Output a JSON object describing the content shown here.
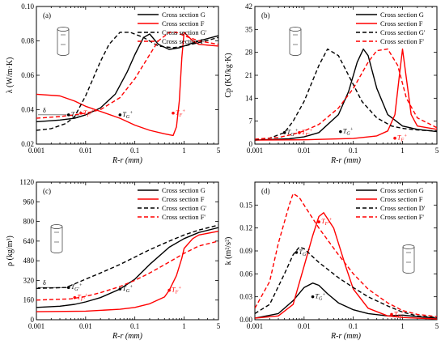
{
  "chart_data": [
    {
      "type": "line",
      "panel_label": "(a)",
      "xlabel": "R-r (mm)",
      "ylabel": "λ (W/m·K)",
      "xscale": "log",
      "xlim": [
        0.001,
        5
      ],
      "ylim": [
        0.02,
        0.1
      ],
      "xticks": [
        0.001,
        0.01,
        0.1,
        1,
        5
      ],
      "xtick_labels": [
        "0.001",
        "0.01",
        "0.1",
        "1",
        "5"
      ],
      "yticks": [
        0.02,
        0.04,
        0.06,
        0.08,
        0.1
      ],
      "ytick_labels": [
        "0.02",
        "0.04",
        "0.06",
        "0.08",
        "0.10"
      ],
      "legend_position": "top-right",
      "series": [
        {
          "name": "Cross section G",
          "color": "#000000",
          "dash": "solid",
          "x": [
            0.001,
            0.003,
            0.006,
            0.01,
            0.02,
            0.04,
            0.07,
            0.1,
            0.15,
            0.2,
            0.3,
            0.5,
            0.8,
            1,
            2,
            5
          ],
          "y": [
            0.033,
            0.034,
            0.035,
            0.037,
            0.041,
            0.049,
            0.062,
            0.072,
            0.082,
            0.084,
            0.078,
            0.075,
            0.076,
            0.077,
            0.08,
            0.083
          ]
        },
        {
          "name": "Cross section F",
          "color": "#ff0000",
          "dash": "solid",
          "x": [
            0.001,
            0.003,
            0.006,
            0.01,
            0.02,
            0.05,
            0.1,
            0.2,
            0.4,
            0.6,
            0.7,
            0.8,
            0.9,
            1,
            1.5,
            2,
            5
          ],
          "y": [
            0.049,
            0.048,
            0.045,
            0.042,
            0.039,
            0.035,
            0.031,
            0.028,
            0.026,
            0.025,
            0.03,
            0.045,
            0.07,
            0.085,
            0.08,
            0.078,
            0.077
          ]
        },
        {
          "name": "Cross section G'",
          "color": "#000000",
          "dash": "dash",
          "x": [
            0.001,
            0.002,
            0.004,
            0.006,
            0.01,
            0.02,
            0.03,
            0.05,
            0.08,
            0.15,
            0.3,
            0.6,
            1,
            2,
            5
          ],
          "y": [
            0.028,
            0.029,
            0.032,
            0.036,
            0.048,
            0.068,
            0.078,
            0.085,
            0.085,
            0.082,
            0.077,
            0.076,
            0.077,
            0.079,
            0.082
          ]
        },
        {
          "name": "Cross section F'",
          "color": "#ff0000",
          "dash": "dash",
          "x": [
            0.001,
            0.003,
            0.006,
            0.01,
            0.02,
            0.05,
            0.1,
            0.2,
            0.3,
            0.5,
            0.7,
            1,
            2,
            5
          ],
          "y": [
            0.035,
            0.036,
            0.037,
            0.038,
            0.04,
            0.047,
            0.058,
            0.072,
            0.08,
            0.085,
            0.085,
            0.083,
            0.08,
            0.078
          ]
        }
      ],
      "markers": [
        {
          "label": "T",
          "sub": "G",
          "sup": "+",
          "color": "#000000",
          "x": 0.05,
          "y": 0.037
        },
        {
          "label": "T",
          "sub": "F",
          "sup": "+",
          "color": "#ff0000",
          "x": 0.6,
          "y": 0.038
        },
        {
          "label": "T",
          "sub": "G'",
          "sup": "+",
          "color": "#000000",
          "x": 0.0045,
          "y": 0.037
        },
        {
          "label": "T",
          "sub": "F'",
          "sup": "+",
          "color": "#ff0000",
          "x": 0.008,
          "y": 0.038
        }
      ],
      "delta_label": "δ"
    },
    {
      "type": "line",
      "panel_label": "(b)",
      "xlabel": "R-r (mm)",
      "ylabel": "Cp (KJ/kg·K)",
      "xscale": "log",
      "xlim": [
        0.001,
        5
      ],
      "ylim": [
        0,
        42
      ],
      "xticks": [
        0.001,
        0.01,
        0.1,
        1,
        5
      ],
      "xtick_labels": [
        "0.001",
        "0.01",
        "0.1",
        "1",
        "5"
      ],
      "yticks": [
        0,
        7,
        14,
        21,
        28,
        35,
        42
      ],
      "ytick_labels": [
        "0",
        "7",
        "14",
        "21",
        "28",
        "35",
        "42"
      ],
      "legend_position": "top-right",
      "series": [
        {
          "name": "Cross section G",
          "color": "#000000",
          "dash": "solid",
          "x": [
            0.001,
            0.005,
            0.01,
            0.02,
            0.05,
            0.08,
            0.12,
            0.16,
            0.2,
            0.3,
            0.5,
            1,
            2,
            5
          ],
          "y": [
            1.2,
            1.6,
            2.2,
            3.5,
            9,
            16,
            25,
            29,
            27,
            17,
            9,
            5.5,
            4.5,
            3.8
          ]
        },
        {
          "name": "Cross section F",
          "color": "#ff0000",
          "dash": "solid",
          "x": [
            0.001,
            0.01,
            0.1,
            0.3,
            0.5,
            0.7,
            0.85,
            1,
            1.2,
            1.5,
            2,
            5
          ],
          "y": [
            1.2,
            1.3,
            1.7,
            2.5,
            4,
            9,
            20,
            29,
            20,
            9,
            5.5,
            4.5
          ]
        },
        {
          "name": "Cross section G'",
          "color": "#000000",
          "dash": "dash",
          "x": [
            0.001,
            0.002,
            0.004,
            0.006,
            0.01,
            0.02,
            0.03,
            0.05,
            0.08,
            0.15,
            0.3,
            0.6,
            1,
            2,
            5
          ],
          "y": [
            1.3,
            1.8,
            3.5,
            7,
            13,
            24,
            29,
            27,
            21,
            13,
            8,
            5.5,
            4.8,
            4.3,
            4
          ]
        },
        {
          "name": "Cross section F'",
          "color": "#ff0000",
          "dash": "dash",
          "x": [
            0.001,
            0.003,
            0.006,
            0.01,
            0.02,
            0.05,
            0.1,
            0.2,
            0.3,
            0.5,
            0.8,
            1.2,
            2,
            5
          ],
          "y": [
            1.5,
            2,
            3,
            4,
            6,
            11,
            17,
            25,
            28.5,
            29,
            24,
            14,
            8,
            5
          ]
        }
      ],
      "markers": [
        {
          "label": "T",
          "sub": "G",
          "sup": "+",
          "color": "#000000",
          "x": 0.055,
          "y": 3.8
        },
        {
          "label": "T",
          "sub": "F",
          "sup": "+",
          "color": "#ff0000",
          "x": 0.7,
          "y": 1.8
        },
        {
          "label": "T",
          "sub": "G'",
          "sup": "+",
          "color": "#000000",
          "x": 0.004,
          "y": 3.5
        },
        {
          "label": "T",
          "sub": "F'",
          "sup": "+",
          "color": "#ff0000",
          "x": 0.008,
          "y": 3.5
        }
      ]
    },
    {
      "type": "line",
      "panel_label": "(c)",
      "xlabel": "R-r (mm)",
      "ylabel": "ρ (kg/m³)",
      "xscale": "log",
      "xlim": [
        0.001,
        5
      ],
      "ylim": [
        0,
        1120
      ],
      "xticks": [
        0.001,
        0.01,
        0.1,
        1,
        5
      ],
      "xtick_labels": [
        "0.001",
        "0.01",
        "0.1",
        "1",
        "5"
      ],
      "yticks": [
        0,
        160,
        320,
        480,
        640,
        800,
        960,
        1120
      ],
      "ytick_labels": [
        "0",
        "160",
        "320",
        "480",
        "640",
        "800",
        "960",
        "1120"
      ],
      "legend_position": "top-right",
      "series": [
        {
          "name": "Cross section G",
          "color": "#000000",
          "dash": "solid",
          "x": [
            0.001,
            0.003,
            0.006,
            0.01,
            0.02,
            0.05,
            0.1,
            0.2,
            0.5,
            1,
            2,
            5
          ],
          "y": [
            100,
            110,
            125,
            145,
            180,
            250,
            330,
            450,
            590,
            660,
            710,
            750
          ]
        },
        {
          "name": "Cross section F",
          "color": "#ff0000",
          "dash": "solid",
          "x": [
            0.001,
            0.01,
            0.05,
            0.1,
            0.2,
            0.4,
            0.5,
            0.7,
            0.9,
            1,
            1.5,
            2,
            5
          ],
          "y": [
            65,
            70,
            85,
            100,
            130,
            185,
            240,
            360,
            500,
            580,
            660,
            690,
            720
          ]
        },
        {
          "name": "Cross section G'",
          "color": "#000000",
          "dash": "dash",
          "x": [
            0.001,
            0.002,
            0.004,
            0.01,
            0.02,
            0.05,
            0.1,
            0.2,
            0.5,
            1,
            2,
            5
          ],
          "y": [
            255,
            258,
            262,
            330,
            380,
            450,
            510,
            570,
            640,
            690,
            730,
            770
          ]
        },
        {
          "name": "Cross section F'",
          "color": "#ff0000",
          "dash": "dash",
          "x": [
            0.001,
            0.005,
            0.01,
            0.02,
            0.05,
            0.1,
            0.2,
            0.5,
            1,
            2,
            5
          ],
          "y": [
            160,
            170,
            190,
            220,
            270,
            320,
            380,
            470,
            540,
            600,
            640
          ]
        }
      ],
      "markers": [
        {
          "label": "T",
          "sub": "G",
          "sup": "+",
          "color": "#000000",
          "x": 0.05,
          "y": 250
        },
        {
          "label": "T",
          "sub": "F",
          "sup": "+",
          "color": "#ff0000",
          "x": 0.5,
          "y": 240
        },
        {
          "label": "T",
          "sub": "G'",
          "sup": "+",
          "color": "#000000",
          "x": 0.0045,
          "y": 262
        },
        {
          "label": "T",
          "sub": "F'",
          "sup": "+",
          "color": "#ff0000",
          "x": 0.006,
          "y": 180
        }
      ],
      "delta_label": "δ"
    },
    {
      "type": "line",
      "panel_label": "(d)",
      "xlabel": "R-r (mm)",
      "ylabel": "k (m²/s²)",
      "xscale": "log",
      "xlim": [
        0.001,
        5
      ],
      "ylim": [
        0,
        0.18
      ],
      "xticks": [
        0.001,
        0.01,
        0.1,
        1,
        5
      ],
      "xtick_labels": [
        "0.001",
        "0.01",
        "0.1",
        "1",
        "5"
      ],
      "yticks": [
        0,
        0.03,
        0.06,
        0.09,
        0.12,
        0.15
      ],
      "ytick_labels": [
        "0.00",
        "0.03",
        "0.06",
        "0.09",
        "0.12",
        "0.15"
      ],
      "legend_position": "top-right",
      "series": [
        {
          "name": "Cross section G",
          "color": "#000000",
          "dash": "solid",
          "x": [
            0.001,
            0.003,
            0.006,
            0.01,
            0.015,
            0.02,
            0.03,
            0.05,
            0.1,
            0.2,
            0.5,
            1,
            2,
            5
          ],
          "y": [
            0.002,
            0.008,
            0.025,
            0.042,
            0.048,
            0.045,
            0.034,
            0.022,
            0.013,
            0.008,
            0.005,
            0.006,
            0.004,
            0.002
          ]
        },
        {
          "name": "Cross section F",
          "color": "#ff0000",
          "dash": "solid",
          "x": [
            0.001,
            0.003,
            0.006,
            0.01,
            0.015,
            0.02,
            0.025,
            0.04,
            0.07,
            0.1,
            0.2,
            0.5,
            1,
            2,
            5
          ],
          "y": [
            0.002,
            0.005,
            0.02,
            0.07,
            0.11,
            0.135,
            0.14,
            0.12,
            0.07,
            0.04,
            0.015,
            0.005,
            0.003,
            0.002,
            0.001
          ]
        },
        {
          "name": "Cross section D'",
          "color": "#000000",
          "dash": "dash",
          "x": [
            0.001,
            0.002,
            0.004,
            0.006,
            0.008,
            0.01,
            0.02,
            0.05,
            0.1,
            0.2,
            0.5,
            1,
            2,
            5
          ],
          "y": [
            0.008,
            0.02,
            0.06,
            0.085,
            0.095,
            0.093,
            0.075,
            0.055,
            0.042,
            0.03,
            0.018,
            0.01,
            0.005,
            0.003
          ]
        },
        {
          "name": "Cross section F'",
          "color": "#ff0000",
          "dash": "dash",
          "x": [
            0.001,
            0.002,
            0.003,
            0.005,
            0.006,
            0.008,
            0.01,
            0.02,
            0.05,
            0.1,
            0.2,
            0.5,
            1,
            2,
            5
          ],
          "y": [
            0.015,
            0.05,
            0.1,
            0.15,
            0.165,
            0.16,
            0.15,
            0.12,
            0.085,
            0.06,
            0.04,
            0.022,
            0.012,
            0.007,
            0.004
          ]
        }
      ],
      "markers": [
        {
          "label": "T",
          "sub": "G",
          "sup": "+",
          "color": "#000000",
          "x": 0.015,
          "y": 0.03
        },
        {
          "label": "T",
          "sub": "D",
          "sup": "+",
          "color": "#ff0000",
          "x": 0.6,
          "y": 0.007
        },
        {
          "label": "T",
          "sub": "G'",
          "sup": "+",
          "color": "#000000",
          "x": 0.007,
          "y": 0.088
        },
        {
          "label": "T",
          "sub": "F'",
          "sup": "+",
          "color": "#ff0000",
          "x": 0.02,
          "y": 0.128
        }
      ]
    }
  ]
}
